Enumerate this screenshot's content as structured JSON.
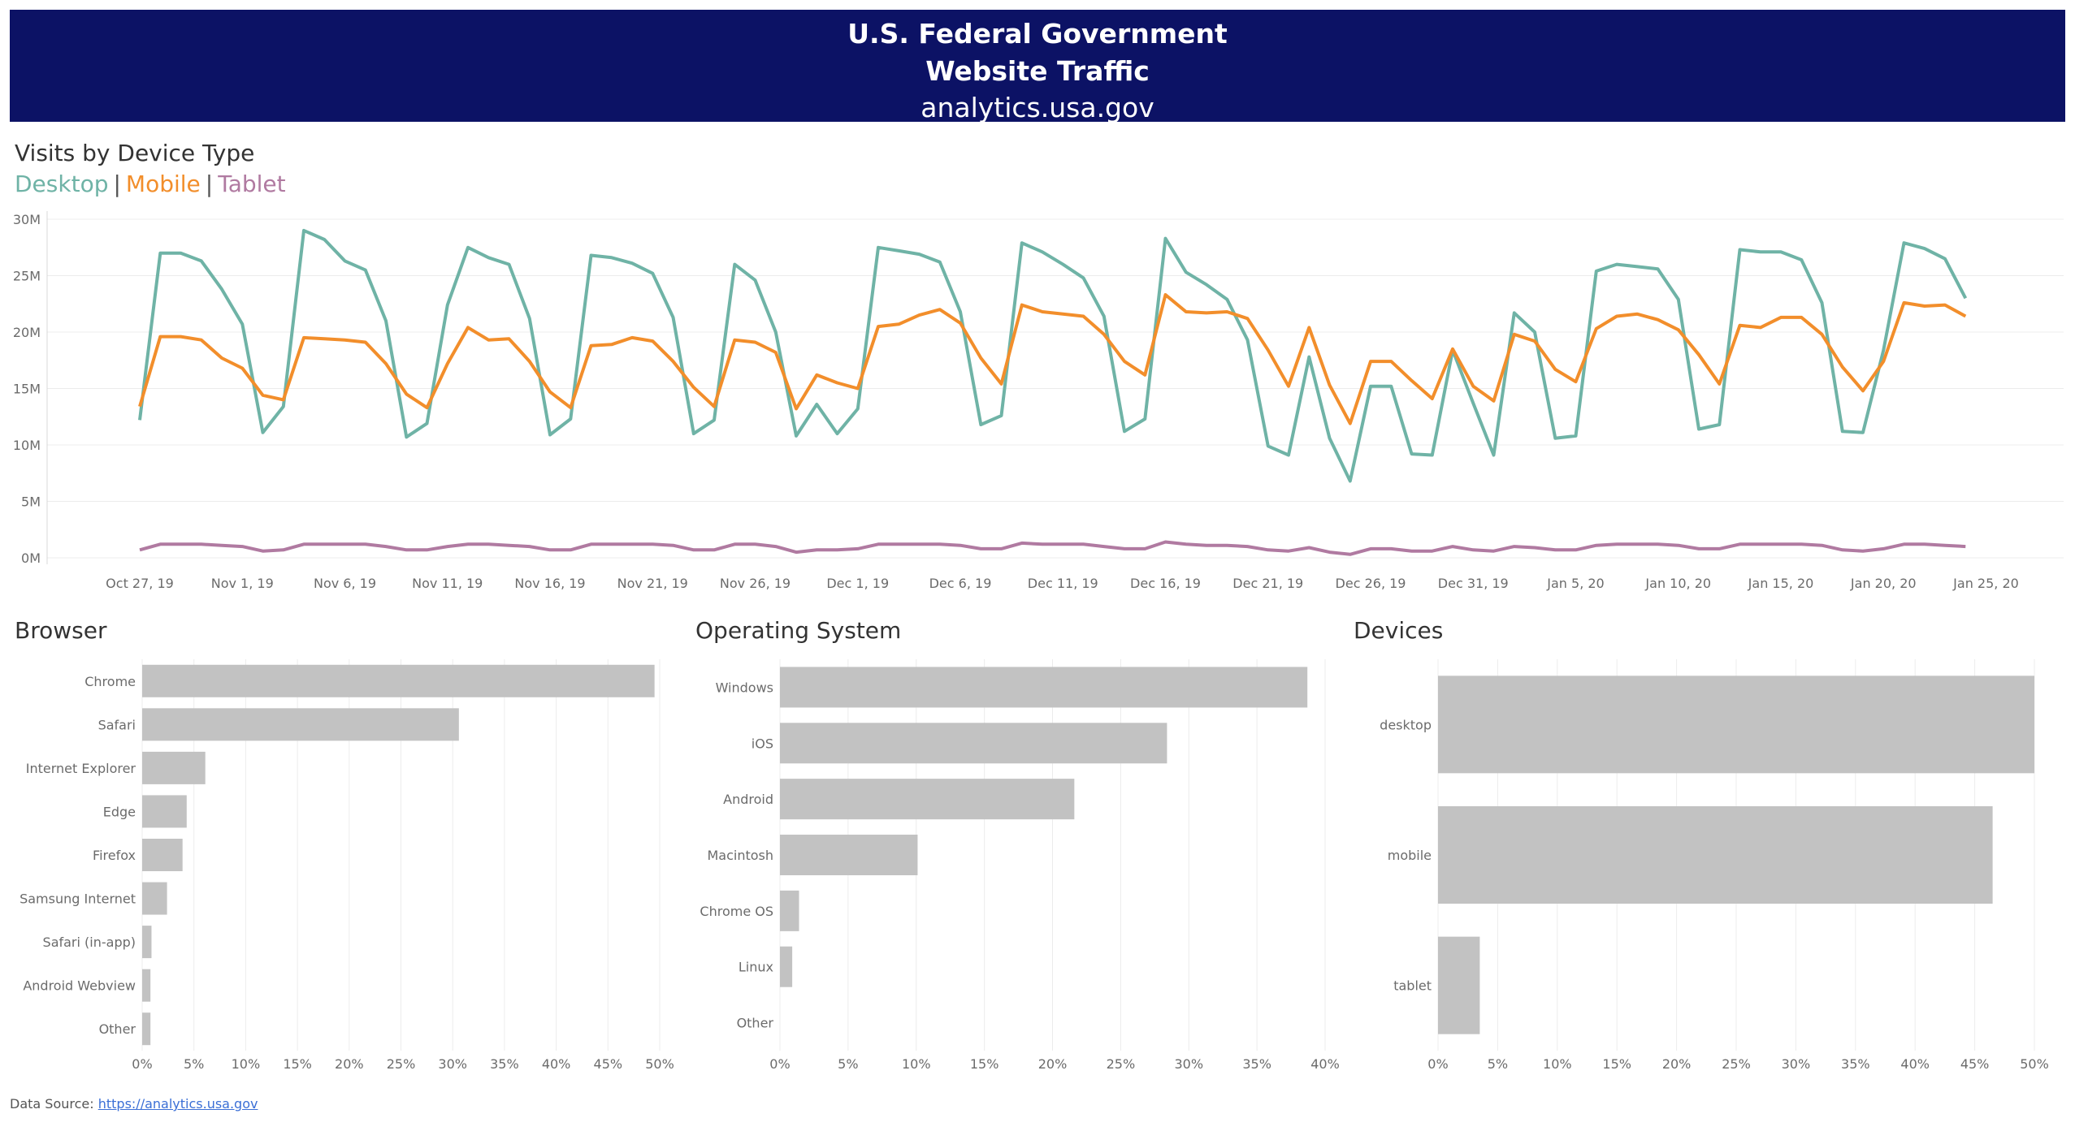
{
  "header": {
    "line1": "U.S. Federal Government",
    "line2": "Website Traffic",
    "line3": "analytics.usa.gov"
  },
  "timeseries": {
    "title": "Visits by Device Type",
    "legend": [
      {
        "label": "Desktop",
        "color": "#6fb3a6"
      },
      {
        "label": "Mobile",
        "color": "#f28e2b"
      },
      {
        "label": "Tablet",
        "color": "#b07aa1"
      }
    ],
    "separator": "|"
  },
  "sections": {
    "browser": "Browser",
    "os": "Operating System",
    "devices": "Devices"
  },
  "footer": {
    "label": "Data Source:",
    "link": "https://analytics.usa.gov"
  },
  "colors": {
    "banner": "#0c1265",
    "bar": "#c2c2c2",
    "grid": "#ececec",
    "axis_text": "#6b6b6b"
  },
  "chart_data": [
    {
      "type": "line",
      "title": "Visits by Device Type",
      "x_start": "2019-10-27",
      "x_end": "2020-01-24",
      "x_tick_labels": [
        "Oct 27, 19",
        "Nov 1, 19",
        "Nov 6, 19",
        "Nov 11, 19",
        "Nov 16, 19",
        "Nov 21, 19",
        "Nov 26, 19",
        "Dec 1, 19",
        "Dec 6, 19",
        "Dec 11, 19",
        "Dec 16, 19",
        "Dec 21, 19",
        "Dec 26, 19",
        "Dec 31, 19",
        "Jan 5, 20",
        "Jan 10, 20",
        "Jan 15, 20",
        "Jan 20, 20",
        "Jan 25, 20"
      ],
      "y_ticks": [
        0,
        5,
        10,
        15,
        20,
        25,
        30
      ],
      "y_tick_labels": [
        "0M",
        "5M",
        "10M",
        "15M",
        "20M",
        "25M",
        "30M"
      ],
      "ylim": [
        0,
        30
      ],
      "y_unit": "M",
      "grid": true,
      "series": [
        {
          "name": "Desktop",
          "color": "#6fb3a6",
          "values": [
            12.2,
            27.0,
            27.0,
            26.3,
            23.8,
            20.7,
            11.1,
            13.4,
            29.0,
            28.2,
            26.3,
            25.5,
            21.0,
            10.7,
            11.9,
            22.4,
            27.5,
            26.6,
            26.0,
            21.2,
            10.9,
            12.3,
            26.8,
            26.6,
            26.1,
            25.2,
            21.3,
            11.0,
            12.2,
            26.0,
            24.6,
            20.0,
            10.8,
            13.6,
            11.0,
            13.2,
            27.5,
            27.2,
            26.9,
            26.2,
            21.8,
            11.8,
            12.6,
            27.9,
            27.1,
            26.0,
            24.8,
            21.4,
            11.2,
            12.3,
            28.3,
            25.3,
            24.2,
            22.9,
            19.3,
            9.9,
            9.1,
            17.8,
            10.6,
            6.8,
            15.2,
            15.2,
            9.2,
            9.1,
            18.4,
            13.7,
            9.1,
            21.7,
            20.0,
            10.6,
            10.8,
            25.4,
            26.0,
            25.8,
            25.6,
            22.9,
            11.4,
            11.8,
            27.3,
            27.1,
            27.1,
            26.4,
            22.6,
            11.2,
            11.1,
            18.4,
            27.9,
            27.4,
            26.5,
            23.0
          ]
        },
        {
          "name": "Mobile",
          "color": "#f28e2b",
          "values": [
            13.4,
            19.6,
            19.6,
            19.3,
            17.7,
            16.8,
            14.4,
            14.0,
            19.5,
            19.4,
            19.3,
            19.1,
            17.2,
            14.5,
            13.3,
            17.2,
            20.4,
            19.3,
            19.4,
            17.4,
            14.7,
            13.3,
            18.8,
            18.9,
            19.5,
            19.2,
            17.4,
            15.1,
            13.4,
            19.3,
            19.1,
            18.2,
            13.2,
            16.2,
            15.5,
            15.0,
            20.5,
            20.7,
            21.5,
            22.0,
            20.8,
            17.7,
            15.4,
            22.4,
            21.8,
            21.6,
            21.4,
            19.8,
            17.4,
            16.2,
            23.3,
            21.8,
            21.7,
            21.8,
            21.2,
            18.4,
            15.2,
            20.4,
            15.3,
            11.9,
            17.4,
            17.4,
            15.7,
            14.1,
            18.5,
            15.2,
            13.9,
            19.8,
            19.2,
            16.7,
            15.6,
            20.3,
            21.4,
            21.6,
            21.1,
            20.2,
            18.0,
            15.4,
            20.6,
            20.4,
            21.3,
            21.3,
            19.8,
            16.9,
            14.8,
            17.4,
            22.6,
            22.3,
            22.4,
            21.4
          ]
        },
        {
          "name": "Tablet",
          "color": "#b07aa1",
          "values": [
            0.7,
            1.2,
            1.2,
            1.2,
            1.1,
            1.0,
            0.6,
            0.7,
            1.2,
            1.2,
            1.2,
            1.2,
            1.0,
            0.7,
            0.7,
            1.0,
            1.2,
            1.2,
            1.1,
            1.0,
            0.7,
            0.7,
            1.2,
            1.2,
            1.2,
            1.2,
            1.1,
            0.7,
            0.7,
            1.2,
            1.2,
            1.0,
            0.5,
            0.7,
            0.7,
            0.8,
            1.2,
            1.2,
            1.2,
            1.2,
            1.1,
            0.8,
            0.8,
            1.3,
            1.2,
            1.2,
            1.2,
            1.0,
            0.8,
            0.8,
            1.4,
            1.2,
            1.1,
            1.1,
            1.0,
            0.7,
            0.6,
            0.9,
            0.5,
            0.3,
            0.8,
            0.8,
            0.6,
            0.6,
            1.0,
            0.7,
            0.6,
            1.0,
            0.9,
            0.7,
            0.7,
            1.1,
            1.2,
            1.2,
            1.2,
            1.1,
            0.8,
            0.8,
            1.2,
            1.2,
            1.2,
            1.2,
            1.1,
            0.7,
            0.6,
            0.8,
            1.2,
            1.2,
            1.1,
            1.0
          ]
        }
      ]
    },
    {
      "type": "bar",
      "orientation": "horizontal",
      "title": "Browser",
      "categories": [
        "Chrome",
        "Safari",
        "Internet Explorer",
        "Edge",
        "Firefox",
        "Samsung Internet",
        "Safari (in-app)",
        "Android Webview",
        "Other"
      ],
      "values": [
        49.5,
        30.6,
        6.1,
        4.3,
        3.9,
        2.4,
        0.9,
        0.8,
        0.8
      ],
      "x_ticks": [
        0,
        5,
        10,
        15,
        20,
        25,
        30,
        35,
        40,
        45,
        50
      ],
      "x_tick_labels": [
        "0%",
        "5%",
        "10%",
        "15%",
        "20%",
        "25%",
        "30%",
        "35%",
        "40%",
        "45%",
        "50%"
      ],
      "xlim": [
        0,
        50
      ],
      "grid": true
    },
    {
      "type": "bar",
      "orientation": "horizontal",
      "title": "Operating System",
      "categories": [
        "Windows",
        "iOS",
        "Android",
        "Macintosh",
        "Chrome OS",
        "Linux",
        "Other"
      ],
      "values": [
        38.7,
        28.4,
        21.6,
        10.1,
        1.4,
        0.9,
        0.0
      ],
      "x_ticks": [
        0,
        5,
        10,
        15,
        20,
        25,
        30,
        35,
        40
      ],
      "x_tick_labels": [
        "0%",
        "5%",
        "10%",
        "15%",
        "20%",
        "25%",
        "30%",
        "35%",
        "40%"
      ],
      "xlim": [
        0,
        40
      ],
      "grid": true
    },
    {
      "type": "bar",
      "orientation": "horizontal",
      "title": "Devices",
      "categories": [
        "desktop",
        "mobile",
        "tablet"
      ],
      "values": [
        50.0,
        46.5,
        3.5
      ],
      "x_ticks": [
        0,
        5,
        10,
        15,
        20,
        25,
        30,
        35,
        40,
        45,
        50
      ],
      "x_tick_labels": [
        "0%",
        "5%",
        "10%",
        "15%",
        "20%",
        "25%",
        "30%",
        "35%",
        "40%",
        "45%",
        "50%"
      ],
      "xlim": [
        0,
        50
      ],
      "grid": true
    }
  ]
}
